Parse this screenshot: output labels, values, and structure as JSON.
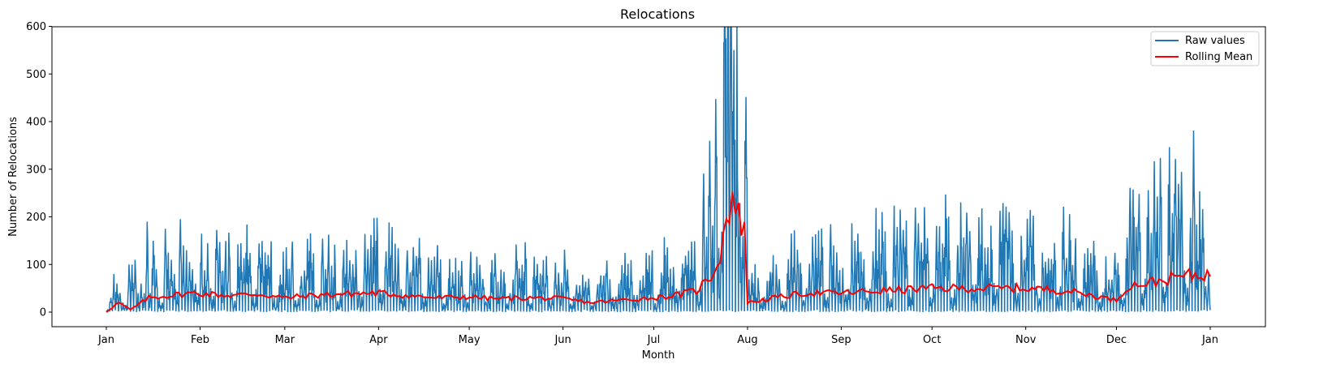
{
  "chart_data": {
    "type": "line",
    "title": "Relocations",
    "xlabel": "Month",
    "ylabel": "Number of Relocations",
    "x_axis": "date",
    "xlim": [
      "2023-01-01",
      "2024-01-01"
    ],
    "ylim": [
      0,
      600
    ],
    "yticks": [
      0,
      100,
      200,
      300,
      400,
      500,
      600
    ],
    "xticks": [
      {
        "date": "2023-01-01",
        "label": "Jan"
      },
      {
        "date": "2023-02-01",
        "label": "Feb"
      },
      {
        "date": "2023-03-01",
        "label": "Mar"
      },
      {
        "date": "2023-04-01",
        "label": "Apr"
      },
      {
        "date": "2023-05-01",
        "label": "May"
      },
      {
        "date": "2023-06-01",
        "label": "Jun"
      },
      {
        "date": "2023-07-01",
        "label": "Jul"
      },
      {
        "date": "2023-08-01",
        "label": "Aug"
      },
      {
        "date": "2023-09-01",
        "label": "Sep"
      },
      {
        "date": "2023-10-01",
        "label": "Oct"
      },
      {
        "date": "2023-11-01",
        "label": "Nov"
      },
      {
        "date": "2023-12-01",
        "label": "Dec"
      },
      {
        "date": "2024-01-01",
        "label": "Jan"
      }
    ],
    "grid": false,
    "legend_position": "top-right",
    "series": [
      {
        "name": "Raw values",
        "color": "#1f77b4",
        "resolution": "hourly",
        "description_of_values": "daily peaks (max hourly value per day)",
        "x": [
          "2023-01-01",
          "2023-01-02",
          "2023-01-03",
          "2023-01-04",
          "2023-01-05",
          "2023-01-06",
          "2023-01-07",
          "2023-01-08",
          "2023-01-09",
          "2023-01-10",
          "2023-01-11",
          "2023-01-12",
          "2023-01-13",
          "2023-01-14",
          "2023-01-15",
          "2023-01-16",
          "2023-01-17",
          "2023-01-18",
          "2023-01-19",
          "2023-01-20",
          "2023-01-21",
          "2023-01-22",
          "2023-01-23",
          "2023-01-24",
          "2023-01-25",
          "2023-01-26",
          "2023-01-27",
          "2023-01-28",
          "2023-01-29",
          "2023-01-30",
          "2023-01-31"
        ],
        "values": [
          5,
          30,
          80,
          60,
          40,
          20,
          15,
          100,
          100,
          110,
          40,
          60,
          40,
          190,
          40,
          150,
          90,
          30,
          20,
          175,
          125,
          110,
          80,
          40,
          195,
          140,
          130,
          105,
          90,
          60,
          40
        ]
      },
      {
        "name": "Rolling Mean",
        "color": "#ff0000",
        "resolution": "daily",
        "x": [
          "2023-01-01",
          "2023-01-05",
          "2023-01-09",
          "2023-01-15",
          "2023-01-22",
          "2023-01-30",
          "2023-02-10",
          "2023-02-20",
          "2023-03-01",
          "2023-03-10",
          "2023-03-20",
          "2023-04-01",
          "2023-04-10",
          "2023-04-20",
          "2023-05-01",
          "2023-05-10",
          "2023-05-20",
          "2023-06-01",
          "2023-06-10",
          "2023-06-20",
          "2023-07-01",
          "2023-07-08",
          "2023-07-15",
          "2023-07-20",
          "2023-07-23",
          "2023-07-25",
          "2023-07-27",
          "2023-07-29",
          "2023-07-31",
          "2023-08-01",
          "2023-08-10",
          "2023-08-20",
          "2023-09-01",
          "2023-09-15",
          "2023-10-01",
          "2023-10-15",
          "2023-11-01",
          "2023-11-15",
          "2023-12-01",
          "2023-12-05",
          "2023-12-15",
          "2023-12-22",
          "2023-12-31"
        ],
        "values": [
          0,
          20,
          5,
          30,
          35,
          40,
          35,
          38,
          30,
          35,
          38,
          40,
          35,
          30,
          32,
          28,
          30,
          28,
          20,
          25,
          30,
          35,
          45,
          75,
          120,
          200,
          240,
          200,
          180,
          20,
          30,
          40,
          40,
          45,
          50,
          50,
          50,
          45,
          25,
          55,
          65,
          75,
          80
        ]
      }
    ]
  }
}
